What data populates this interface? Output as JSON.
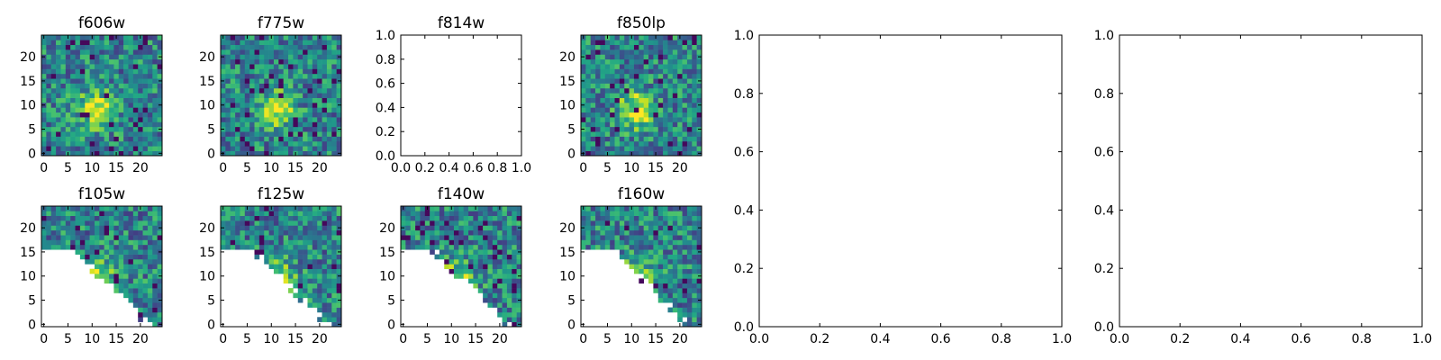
{
  "chart_data": [
    {
      "type": "heatmap",
      "title": "f606w",
      "xlim": [
        0,
        24
      ],
      "ylim": [
        0,
        24
      ],
      "xticks": [
        "0",
        "5",
        "10",
        "15",
        "20"
      ],
      "yticks": [
        "0",
        "5",
        "10",
        "15",
        "20"
      ],
      "colormap": "viridis",
      "masked_lower_left": false,
      "seed": 11
    },
    {
      "type": "heatmap",
      "title": "f775w",
      "xlim": [
        0,
        24
      ],
      "ylim": [
        0,
        24
      ],
      "xticks": [
        "0",
        "5",
        "10",
        "15",
        "20"
      ],
      "yticks": [
        "0",
        "5",
        "10",
        "15",
        "20"
      ],
      "colormap": "viridis",
      "masked_lower_left": false,
      "seed": 23
    },
    {
      "type": "empty",
      "title": "f814w",
      "xlim": [
        0,
        1
      ],
      "ylim": [
        0,
        1
      ],
      "xticks": [
        "0.0",
        "0.2",
        "0.4",
        "0.6",
        "0.8",
        "1.0"
      ],
      "yticks": [
        "0.0",
        "0.2",
        "0.4",
        "0.6",
        "0.8",
        "1.0"
      ]
    },
    {
      "type": "heatmap",
      "title": "f850lp",
      "xlim": [
        0,
        24
      ],
      "ylim": [
        0,
        24
      ],
      "xticks": [
        "0",
        "5",
        "10",
        "15",
        "20"
      ],
      "yticks": [
        "0",
        "5",
        "10",
        "15",
        "20"
      ],
      "colormap": "viridis",
      "masked_lower_left": false,
      "seed": 37
    },
    {
      "type": "heatmap",
      "title": "f105w",
      "xlim": [
        0,
        24
      ],
      "ylim": [
        0,
        24
      ],
      "xticks": [
        "0",
        "5",
        "10",
        "15",
        "20"
      ],
      "yticks": [
        "0",
        "5",
        "10",
        "15",
        "20"
      ],
      "colormap": "viridis",
      "masked_lower_left": true,
      "seed": 41
    },
    {
      "type": "heatmap",
      "title": "f125w",
      "xlim": [
        0,
        24
      ],
      "ylim": [
        0,
        24
      ],
      "xticks": [
        "0",
        "5",
        "10",
        "15",
        "20"
      ],
      "yticks": [
        "0",
        "5",
        "10",
        "15",
        "20"
      ],
      "colormap": "viridis",
      "masked_lower_left": true,
      "seed": 53
    },
    {
      "type": "heatmap",
      "title": "f140w",
      "xlim": [
        0,
        24
      ],
      "ylim": [
        0,
        24
      ],
      "xticks": [
        "0",
        "5",
        "10",
        "15",
        "20"
      ],
      "yticks": [
        "0",
        "5",
        "10",
        "15",
        "20"
      ],
      "colormap": "viridis",
      "masked_lower_left": true,
      "seed": 67
    },
    {
      "type": "heatmap",
      "title": "f160w",
      "xlim": [
        0,
        24
      ],
      "ylim": [
        0,
        24
      ],
      "xticks": [
        "0",
        "5",
        "10",
        "15",
        "20"
      ],
      "yticks": [
        "0",
        "5",
        "10",
        "15",
        "20"
      ],
      "colormap": "viridis",
      "masked_lower_left": true,
      "seed": 79
    },
    {
      "type": "empty",
      "title": "",
      "xlim": [
        0,
        1
      ],
      "ylim": [
        0,
        1
      ],
      "xticks": [
        "0.0",
        "0.2",
        "0.4",
        "0.6",
        "0.8",
        "1.0"
      ],
      "yticks": [
        "0.0",
        "0.2",
        "0.4",
        "0.6",
        "0.8",
        "1.0"
      ]
    },
    {
      "type": "empty",
      "title": "",
      "xlim": [
        0,
        1
      ],
      "ylim": [
        0,
        1
      ],
      "xticks": [
        "0.0",
        "0.2",
        "0.4",
        "0.6",
        "0.8",
        "1.0"
      ],
      "yticks": [
        "0.0",
        "0.2",
        "0.4",
        "0.6",
        "0.8",
        "1.0"
      ]
    }
  ]
}
